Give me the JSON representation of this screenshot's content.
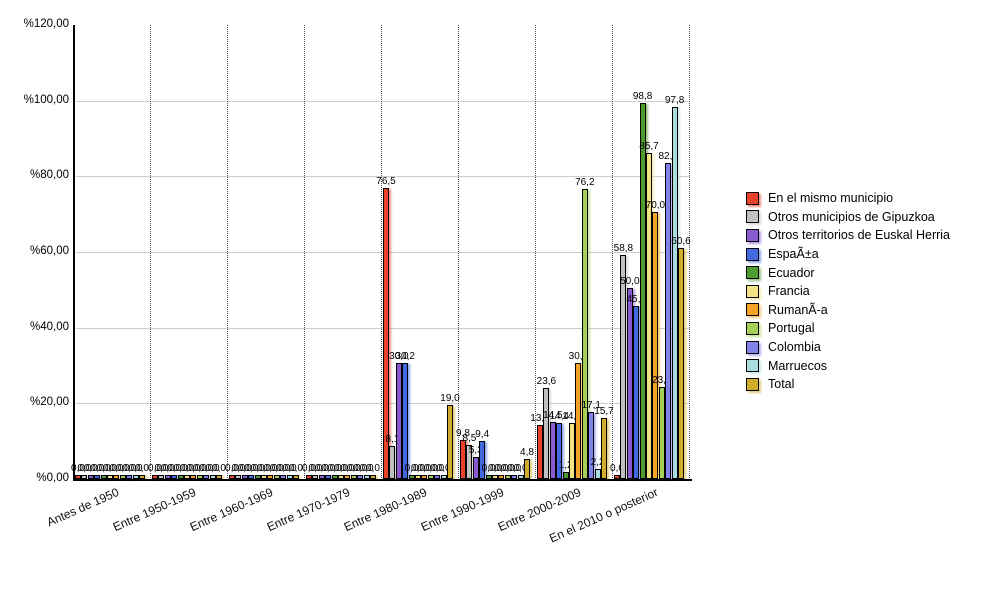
{
  "chart_data": {
    "type": "bar",
    "title": "",
    "categories": [
      "Antes de 1950",
      "Entre 1950-1959",
      "Entre 1960-1969",
      "Entre 1970-1979",
      "Entre 1980-1989",
      "Entre 1990-1999",
      "Entre 2000-2009",
      "En el 2010 o posterior"
    ],
    "series": [
      {
        "name": "En el mismo municipio",
        "color": "#e8432a",
        "values": [
          0,
          0,
          0,
          0,
          76.5,
          9.8,
          13.7,
          0
        ]
      },
      {
        "name": "Otros municipios de Gipuzkoa",
        "color": "#c0c0c0",
        "values": [
          0,
          0,
          0,
          0,
          8.1,
          8.5,
          23.6,
          58.8
        ]
      },
      {
        "name": "Otros territorios de Euskal Herria",
        "color": "#8a5bd0",
        "values": [
          0,
          0,
          0,
          0,
          30.0,
          5.3,
          14.5,
          50.0
        ]
      },
      {
        "name": "EspaÃ±a",
        "color": "#4169e0",
        "values": [
          0,
          0,
          0,
          0,
          30.2,
          9.4,
          14.4,
          45.3
        ]
      },
      {
        "name": "Ecuador",
        "color": "#4f9b30",
        "values": [
          0,
          0,
          0,
          0,
          0,
          0,
          1.2,
          98.8
        ]
      },
      {
        "name": "Francia",
        "color": "#f1e283",
        "values": [
          0,
          0,
          0,
          0,
          0,
          0,
          14.3,
          85.7
        ]
      },
      {
        "name": "RumanÃ-a",
        "color": "#f5a226",
        "values": [
          0,
          0,
          0,
          0,
          0,
          0,
          30.0,
          70.0
        ]
      },
      {
        "name": "Portugal",
        "color": "#a6cf58",
        "values": [
          0,
          0,
          0,
          0,
          0,
          0,
          76.2,
          23.8
        ]
      },
      {
        "name": "Colombia",
        "color": "#8282ea",
        "values": [
          0,
          0,
          0,
          0,
          0,
          0,
          17.1,
          82.9
        ]
      },
      {
        "name": "Marruecos",
        "color": "#a9dcdf",
        "values": [
          0,
          0,
          0,
          0,
          0,
          0,
          2.2,
          97.8
        ]
      },
      {
        "name": "Total",
        "color": "#d0ad2a",
        "values": [
          0,
          0,
          0,
          0,
          19.0,
          4.8,
          15.7,
          60.6
        ]
      }
    ],
    "ylim": [
      0,
      120
    ],
    "yticks": [
      0,
      20,
      40,
      60,
      80,
      100,
      120
    ],
    "ytick_labels": [
      "%0,00",
      "%20,00",
      "%40,00",
      "%60,00",
      "%80,00",
      "%100,00",
      "%120,00"
    ],
    "value_label_decimal_separator": ",",
    "grid": "horizontal solid gridlines, vertical dotted category separators",
    "legend_position": "right"
  }
}
